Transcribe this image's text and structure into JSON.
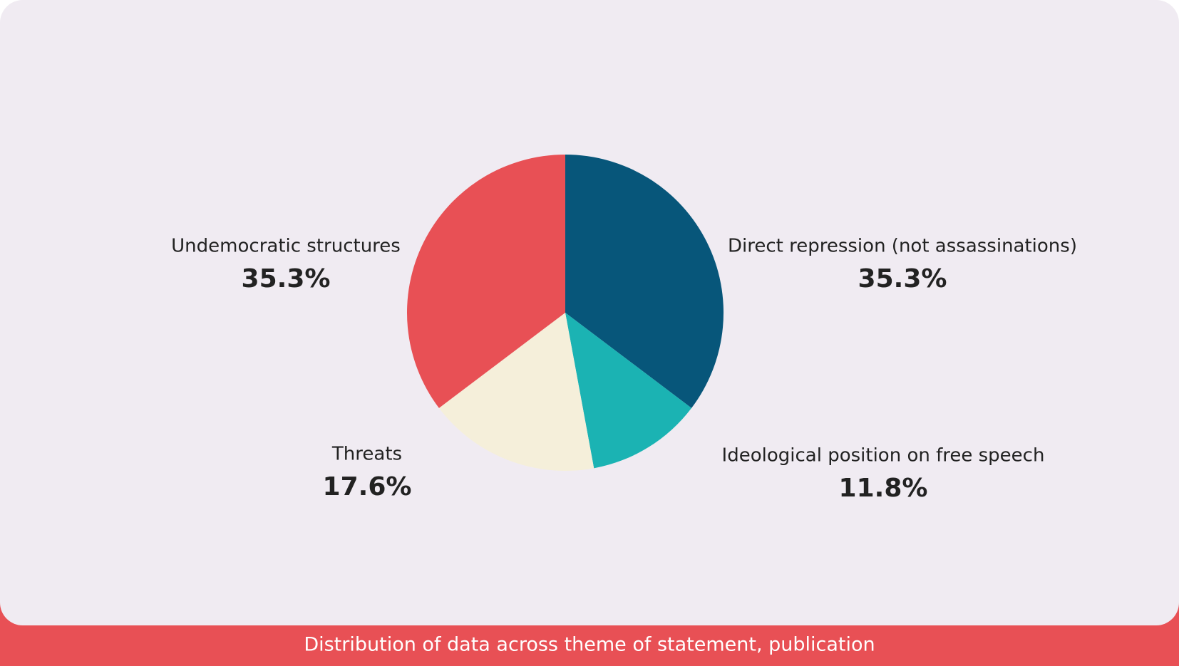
{
  "chart_data": {
    "type": "pie",
    "title": "Distribution of data across theme of statement, publication",
    "categories": [
      "Direct repression (not assassinations)",
      "Ideological position on free speech",
      "Threats",
      "Undemocratic structures"
    ],
    "values": [
      35.3,
      11.8,
      17.6,
      35.3
    ],
    "value_labels": [
      "35.3%",
      "11.8%",
      "17.6%",
      "35.3%"
    ],
    "colors": [
      "#07567a",
      "#1bb3b3",
      "#f5efda",
      "#e85055"
    ]
  }
}
